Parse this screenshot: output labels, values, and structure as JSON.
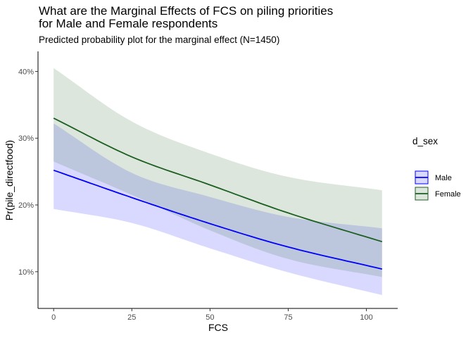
{
  "chart_data": {
    "type": "line",
    "title_line1": "What are the Marginal Effects of FCS on piling priorities",
    "title_line2": "for Male and Female respondents",
    "subtitle": "Predicted probability plot for the marginal effect (N=1450)",
    "xlabel": "FCS",
    "ylabel": "Pr(pile_directfood)",
    "xlim": [
      -5,
      110
    ],
    "ylim": [
      0.045,
      0.43
    ],
    "x_ticks": [
      0,
      25,
      50,
      75,
      100
    ],
    "x_tick_labels": [
      "0",
      "25",
      "50",
      "75",
      "100"
    ],
    "y_ticks": [
      0.1,
      0.2,
      0.3,
      0.4
    ],
    "y_tick_labels": [
      "10%",
      "20%",
      "30%",
      "40%"
    ],
    "grid": false,
    "legend": {
      "title": "d_sex",
      "position": "right"
    },
    "x": [
      0,
      25,
      50,
      75,
      105
    ],
    "series": [
      {
        "name": "Male",
        "color": "#0000ff",
        "fill": "#0000ff",
        "fill_opacity": 0.15,
        "estimate": [
          0.252,
          0.211,
          0.172,
          0.137,
          0.104
        ],
        "lower": [
          0.194,
          0.173,
          0.135,
          0.099,
          0.065
        ],
        "upper": [
          0.322,
          0.248,
          0.212,
          0.182,
          0.165
        ]
      },
      {
        "name": "Female",
        "color": "#1b5e20",
        "fill": "#2e6b2e",
        "fill_opacity": 0.17,
        "estimate": [
          0.33,
          0.272,
          0.23,
          0.188,
          0.145
        ],
        "lower": [
          0.265,
          0.215,
          0.162,
          0.119,
          0.092
        ],
        "upper": [
          0.405,
          0.325,
          0.277,
          0.242,
          0.222
        ]
      }
    ]
  }
}
